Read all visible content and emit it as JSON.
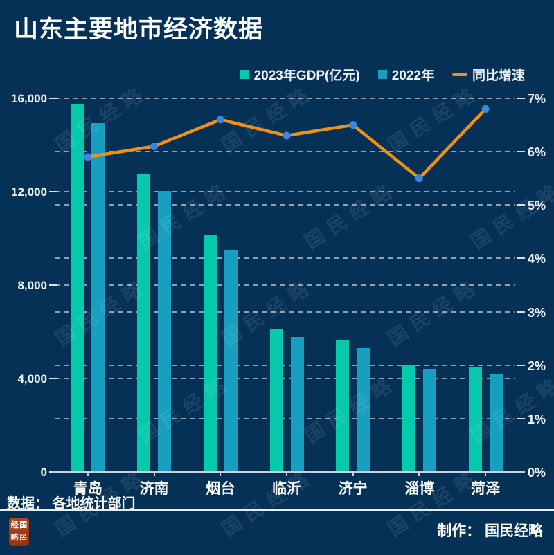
{
  "title": "山东主要地市经济数据",
  "colors": {
    "background": "#053156",
    "bar_2023": "#06c9ac",
    "bar_2022": "#189fc0",
    "line": "#f29111",
    "dot": "#3c85e3",
    "grid": "rgba(255,255,255,0.55)",
    "seal_background": "#a43c14"
  },
  "chart_data": {
    "type": "bar",
    "combo": "grouped-bars-with-line-on-secondary-axis",
    "title": "山东主要地市经济数据",
    "categories": [
      "青岛",
      "济南",
      "烟台",
      "临沂",
      "济宁",
      "淄博",
      "菏泽"
    ],
    "series": [
      {
        "name": "2023年GDP(亿元)",
        "type": "bar",
        "axis": "left",
        "values": [
          15760,
          12757,
          10162,
          6105,
          5623,
          4562,
          4465
        ]
      },
      {
        "name": "2022年",
        "type": "bar",
        "axis": "left",
        "values": [
          14921,
          12028,
          9516,
          5779,
          5317,
          4403,
          4205
        ]
      },
      {
        "name": "同比增速",
        "type": "line",
        "axis": "right",
        "unit": "%",
        "values": [
          5.9,
          6.1,
          6.6,
          6.3,
          6.5,
          5.5,
          6.8
        ]
      }
    ],
    "left_axis": {
      "min": 0,
      "max": 16000,
      "ticks": [
        16000,
        12000,
        8000,
        4000,
        0
      ],
      "tick_labels": [
        "16,000",
        "12,000",
        "8,000",
        "4,000",
        "0"
      ]
    },
    "right_axis": {
      "min": 0,
      "max": 7,
      "ticks": [
        7,
        6,
        5,
        4,
        3,
        2,
        1,
        0
      ],
      "tick_labels": [
        "7%",
        "6%",
        "5%",
        "4%",
        "3%",
        "2%",
        "1%",
        "0%"
      ]
    },
    "grid": "dashed horizontal lines at left and right axis ticks",
    "legend_position": "top-right"
  },
  "watermark": "国民经略",
  "footer": {
    "source": "数据： 各地统计部门",
    "credit": "制作： 国民经略",
    "seal": {
      "text": "国民经略",
      "grid": [
        "经",
        "国",
        "略",
        "民"
      ]
    }
  }
}
